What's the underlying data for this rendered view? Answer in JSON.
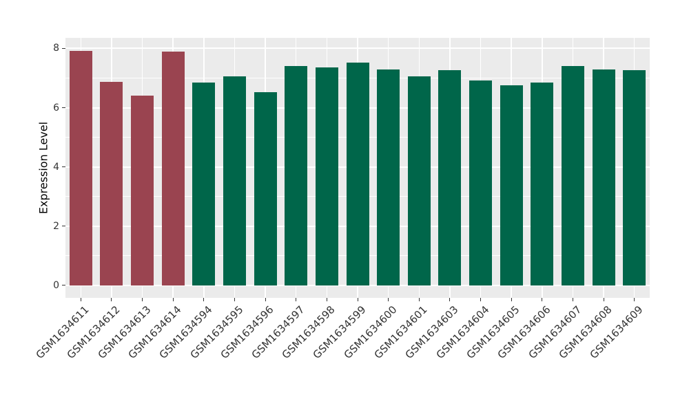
{
  "chart_data": {
    "type": "bar",
    "title": "",
    "xlabel": "",
    "ylabel": "Expression Level",
    "ylim": [
      -0.42,
      8.36
    ],
    "yticks": [
      0,
      2,
      4,
      6,
      8
    ],
    "yticks_minor": [
      1,
      3,
      5,
      7
    ],
    "grid": true,
    "legend_position": "none",
    "categories": [
      "GSM1634611",
      "GSM1634612",
      "GSM1634613",
      "GSM1634614",
      "GSM1634594",
      "GSM1634595",
      "GSM1634596",
      "GSM1634597",
      "GSM1634598",
      "GSM1634599",
      "GSM1634600",
      "GSM1634601",
      "GSM1634603",
      "GSM1634604",
      "GSM1634605",
      "GSM1634606",
      "GSM1634607",
      "GSM1634608",
      "GSM1634609"
    ],
    "values": [
      7.92,
      6.87,
      6.41,
      7.9,
      6.85,
      7.06,
      6.52,
      7.4,
      7.37,
      7.52,
      7.29,
      7.06,
      7.26,
      6.91,
      6.76,
      6.85,
      7.4,
      7.29,
      7.26
    ],
    "bar_groups": [
      0,
      0,
      0,
      0,
      1,
      1,
      1,
      1,
      1,
      1,
      1,
      1,
      1,
      1,
      1,
      1,
      1,
      1,
      1
    ],
    "group_colors": [
      "#9a4450",
      "#00664a"
    ],
    "colors": {
      "panel_bg": "#ebebeb",
      "grid": "#ffffff",
      "tick": "#333333",
      "tick_label": "#333333",
      "axis_title": "#000000",
      "figure_bg": "#ffffff"
    }
  }
}
